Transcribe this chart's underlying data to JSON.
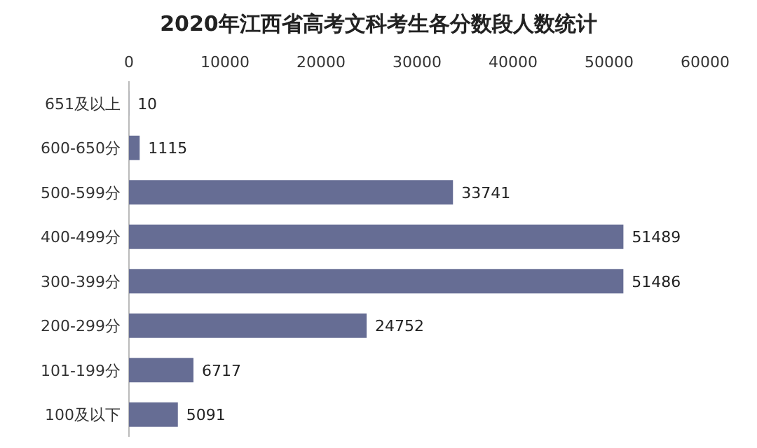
{
  "chart_data": {
    "type": "bar",
    "orientation": "horizontal",
    "title": "2020年江西省高考文科考生各分数段人数统计",
    "categories": [
      "651及以上",
      "600-650分",
      "500-599分",
      "400-499分",
      "300-399分",
      "200-299分",
      "101-199分",
      "100及以下"
    ],
    "values": [
      10,
      1115,
      33741,
      51489,
      51486,
      24752,
      6717,
      5091
    ],
    "color": "#666d94",
    "xlim": [
      0,
      60000
    ],
    "xticks": [
      0,
      10000,
      20000,
      30000,
      40000,
      50000,
      60000
    ],
    "data_labels": true
  }
}
